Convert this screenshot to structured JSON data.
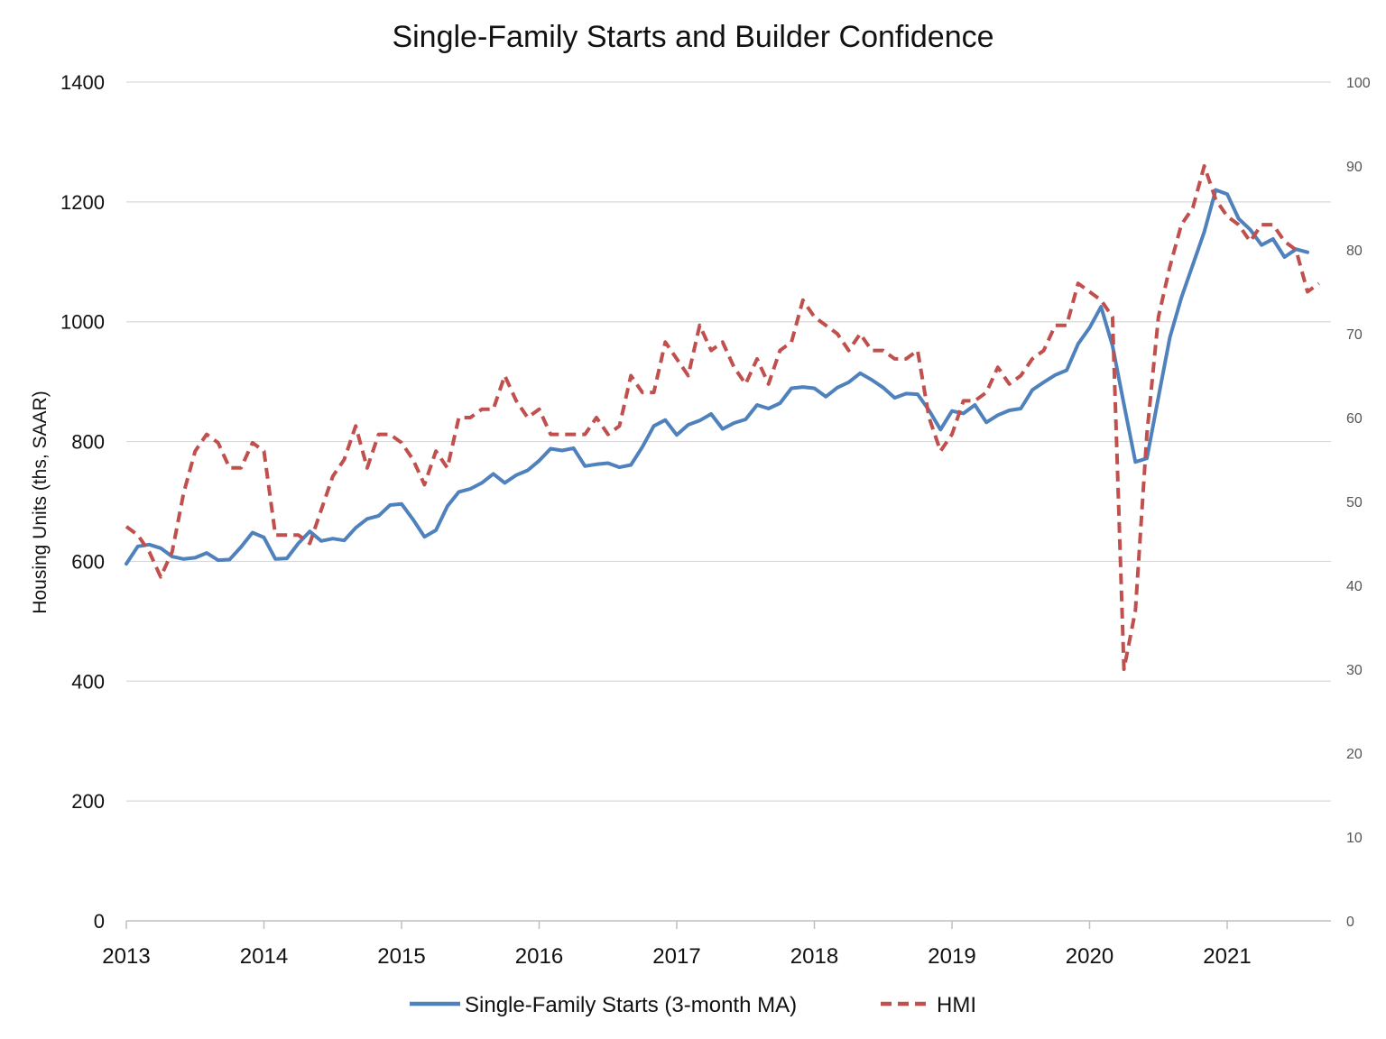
{
  "chart_data": {
    "type": "line",
    "title": "Single-Family Starts and Builder Confidence",
    "ylabel": "Housing Units (ths, SAAR)",
    "ylim": [
      0,
      1400
    ],
    "y_ticks": [
      "0",
      "200",
      "400",
      "600",
      "800",
      "1000",
      "1200",
      "1400"
    ],
    "y2lim": [
      0,
      100
    ],
    "y2_ticks": [
      "0",
      "10",
      "20",
      "30",
      "40",
      "50",
      "60",
      "70",
      "80",
      "90",
      "100"
    ],
    "x_ticks": [
      "2013",
      "2014",
      "2015",
      "2016",
      "2017",
      "2018",
      "2019",
      "2020",
      "2021"
    ],
    "grid": "horizontal",
    "legend_position": "bottom",
    "series": [
      {
        "name": "Single-Family Starts (3-month MA)",
        "axis": "left",
        "color": "#4F81BD",
        "style": "solid",
        "x_start": "2013-01",
        "values": [
          596,
          625,
          628,
          622,
          608,
          604,
          606,
          614,
          602,
          603,
          624,
          648,
          640,
          604,
          605,
          630,
          650,
          634,
          638,
          635,
          656,
          671,
          676,
          694,
          696,
          670,
          641,
          652,
          692,
          716,
          721,
          731,
          746,
          731,
          744,
          752,
          768,
          788,
          785,
          789,
          759,
          762,
          764,
          757,
          761,
          791,
          826,
          836,
          811,
          828,
          835,
          846,
          821,
          831,
          837,
          861,
          855,
          864,
          889,
          891,
          889,
          875,
          890,
          899,
          914,
          903,
          890,
          873,
          880,
          879,
          852,
          820,
          851,
          847,
          861,
          832,
          844,
          852,
          855,
          886,
          899,
          911,
          919,
          963,
          990,
          1025,
          960,
          862,
          766,
          772,
          874,
          974,
          1040,
          1095,
          1150,
          1220,
          1213,
          1172,
          1154,
          1128,
          1138,
          1108,
          1121,
          1116
        ]
      },
      {
        "name": "HMI",
        "axis": "right",
        "color": "#C0504D",
        "style": "dashed",
        "x_start": "2013-01",
        "values": [
          47,
          46,
          44,
          41,
          44,
          51,
          56,
          58,
          57,
          54,
          54,
          57,
          56,
          46,
          46,
          46,
          45,
          49,
          53,
          55,
          59,
          54,
          58,
          58,
          57,
          55,
          52,
          56,
          54,
          60,
          60,
          61,
          61,
          65,
          62,
          60,
          61,
          58,
          58,
          58,
          58,
          60,
          58,
          59,
          65,
          63,
          63,
          69,
          67,
          65,
          71,
          68,
          69,
          66,
          64,
          67,
          64,
          68,
          69,
          74,
          72,
          71,
          70,
          68,
          70,
          68,
          68,
          67,
          67,
          68,
          60,
          56,
          58,
          62,
          62,
          63,
          66,
          64,
          65,
          67,
          68,
          71,
          71,
          76,
          75,
          74,
          72,
          30,
          37,
          58,
          72,
          78,
          83,
          85,
          90,
          86,
          84,
          83,
          81,
          83,
          83,
          81,
          80,
          75,
          76
        ]
      }
    ]
  }
}
